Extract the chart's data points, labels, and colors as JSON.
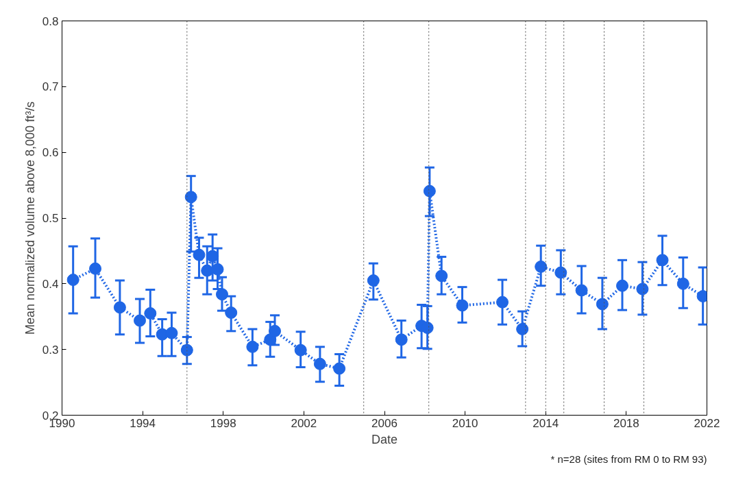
{
  "chart_data": {
    "type": "line",
    "xlabel": "Date",
    "ylabel": "Mean normalized volume above 8,000 ft³/s",
    "x": [
      1990.55,
      1991.65,
      1992.87,
      1993.86,
      1994.38,
      1994.97,
      1995.44,
      1996.2,
      1996.4,
      1996.8,
      1997.2,
      1997.47,
      1997.72,
      1997.94,
      1998.39,
      1999.45,
      2000.33,
      2000.56,
      2001.84,
      2002.8,
      2003.76,
      2005.45,
      2006.84,
      2007.84,
      2008.13,
      2008.24,
      2008.83,
      2009.86,
      2011.85,
      2012.84,
      2013.76,
      2014.75,
      2015.78,
      2016.81,
      2017.8,
      2018.8,
      2019.79,
      2020.82,
      2021.8
    ],
    "series": [
      {
        "color": "#1f66e5",
        "marker": "circle",
        "line_style": "dotted",
        "values": [
          0.406,
          0.423,
          0.364,
          0.344,
          0.355,
          0.323,
          0.325,
          0.299,
          0.532,
          0.444,
          0.42,
          0.442,
          0.422,
          0.384,
          0.356,
          0.304,
          0.315,
          0.328,
          0.299,
          0.278,
          0.271,
          0.405,
          0.315,
          0.336,
          0.333,
          0.541,
          0.412,
          0.367,
          0.372,
          0.331,
          0.426,
          0.417,
          0.39,
          0.369,
          0.397,
          0.392,
          0.436,
          0.4,
          0.381
        ],
        "errors": [
          [
            0.355,
            0.457
          ],
          [
            0.379,
            0.469
          ],
          [
            0.323,
            0.405
          ],
          [
            0.31,
            0.377
          ],
          [
            0.32,
            0.391
          ],
          [
            0.29,
            0.346
          ],
          [
            0.29,
            0.356
          ],
          [
            0.278,
            0.319
          ],
          [
            0.449,
            0.564
          ],
          [
            0.409,
            0.47
          ],
          [
            0.384,
            0.457
          ],
          [
            0.405,
            0.475
          ],
          [
            0.392,
            0.454
          ],
          [
            0.359,
            0.41
          ],
          [
            0.328,
            0.381
          ],
          [
            0.276,
            0.331
          ],
          [
            0.289,
            0.342
          ],
          [
            0.307,
            0.352
          ],
          [
            0.273,
            0.327
          ],
          [
            0.251,
            0.304
          ],
          [
            0.245,
            0.293
          ],
          [
            0.376,
            0.431
          ],
          [
            0.288,
            0.344
          ],
          [
            0.302,
            0.368
          ],
          [
            0.301,
            0.366
          ],
          [
            0.503,
            0.577
          ],
          [
            0.384,
            0.441
          ],
          [
            0.341,
            0.395
          ],
          [
            0.338,
            0.406
          ],
          [
            0.305,
            0.358
          ],
          [
            0.397,
            0.458
          ],
          [
            0.384,
            0.451
          ],
          [
            0.355,
            0.427
          ],
          [
            0.331,
            0.409
          ],
          [
            0.36,
            0.436
          ],
          [
            0.353,
            0.433
          ],
          [
            0.398,
            0.473
          ],
          [
            0.363,
            0.44
          ],
          [
            0.338,
            0.425
          ]
        ]
      }
    ],
    "xlim": [
      1990,
      2022
    ],
    "xticks": [
      1990,
      1994,
      1998,
      2002,
      2006,
      2010,
      2014,
      2018,
      2022
    ],
    "ylim": [
      0.2,
      0.8
    ],
    "yticks": [
      0.2,
      0.3,
      0.4,
      0.5,
      0.6,
      0.7,
      0.8
    ],
    "ref_lines": [
      {
        "axis": "x",
        "value": 1996.2,
        "color": "#555555",
        "line_style": "dotted"
      },
      {
        "axis": "x",
        "value": 2004.97,
        "color": "#555555",
        "line_style": "dotted"
      },
      {
        "axis": "x",
        "value": 2008.2,
        "color": "#555555",
        "line_style": "dotted"
      },
      {
        "axis": "x",
        "value": 2013.0,
        "color": "#555555",
        "line_style": "dotted"
      },
      {
        "axis": "x",
        "value": 2014.0,
        "color": "#555555",
        "line_style": "dotted"
      },
      {
        "axis": "x",
        "value": 2014.9,
        "color": "#555555",
        "line_style": "dotted"
      },
      {
        "axis": "x",
        "value": 2016.9,
        "color": "#555555",
        "line_style": "dotted"
      },
      {
        "axis": "x",
        "value": 2018.87,
        "color": "#555555",
        "line_style": "dotted"
      }
    ],
    "annotations": [
      "* n=28 (sites from RM 0 to RM 93)"
    ],
    "grid": false
  }
}
